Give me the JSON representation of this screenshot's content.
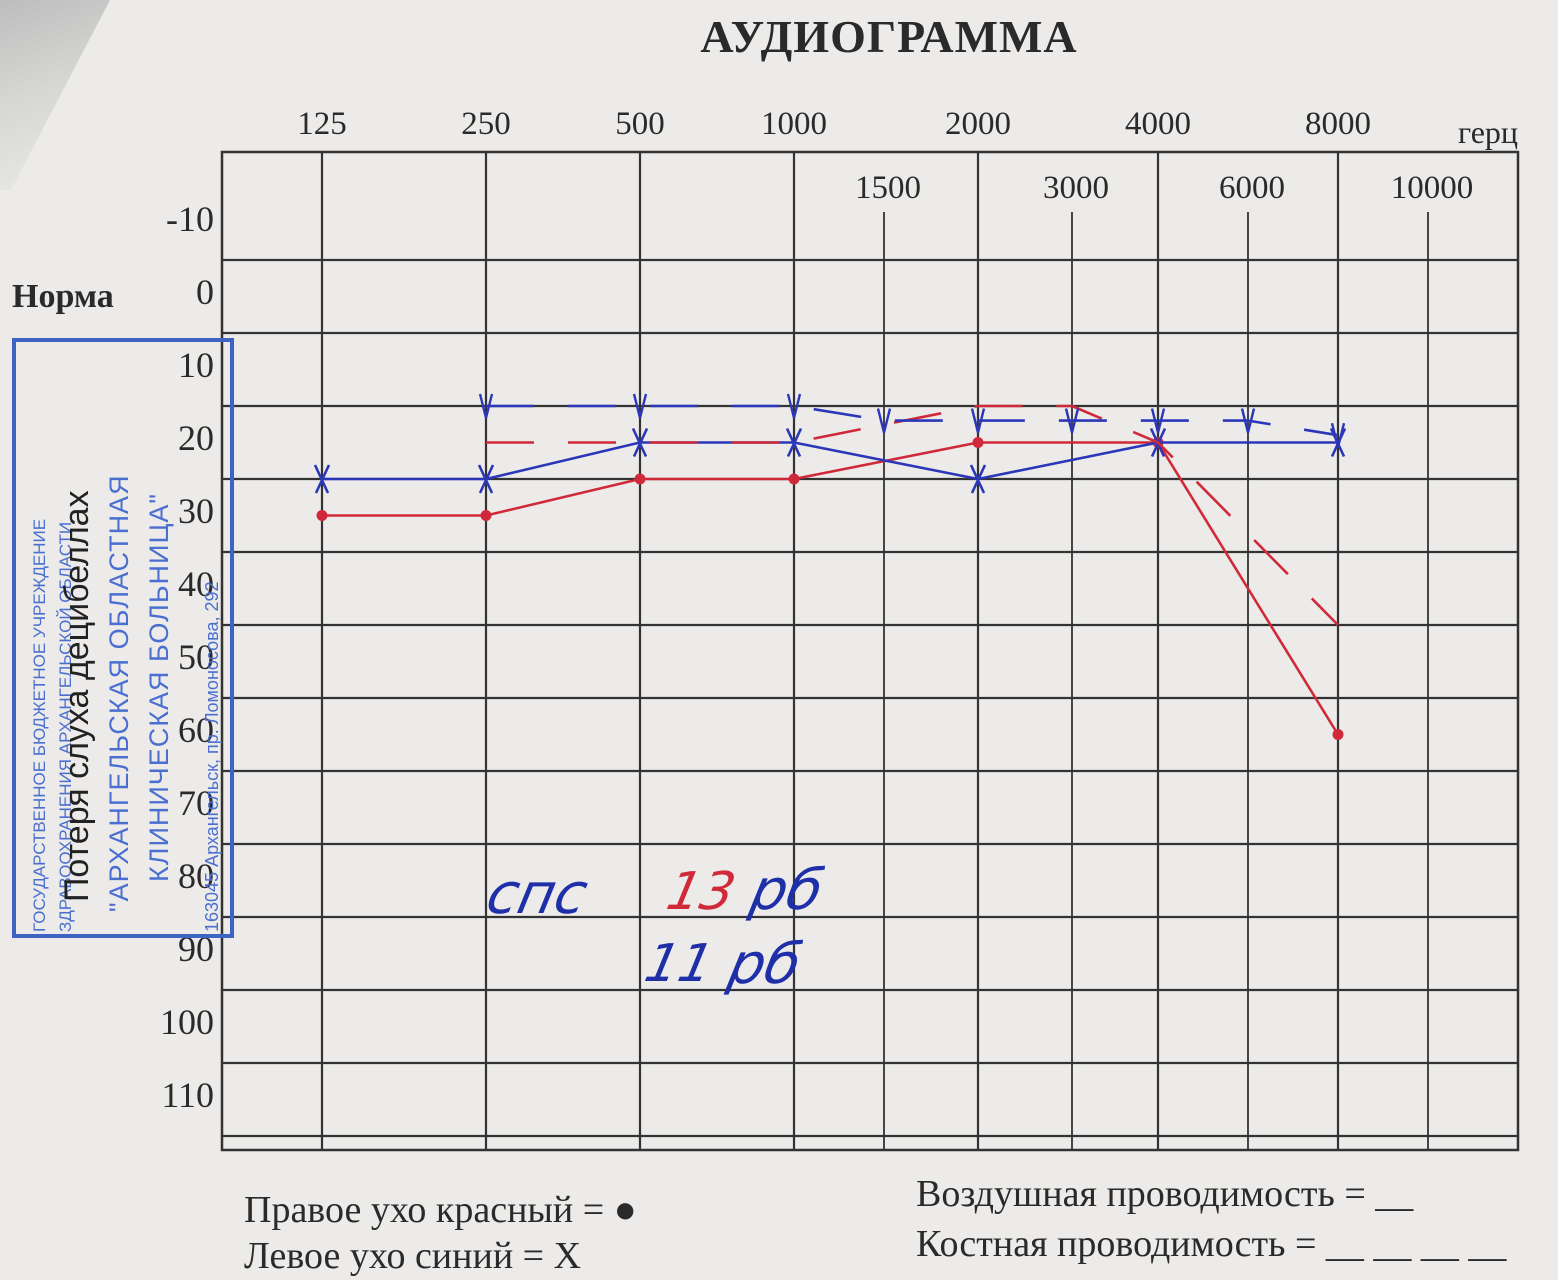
{
  "title": "АУДИОГРАММА",
  "norm_label": "Норма",
  "caption_vertical": "Потеря слуха децибеллах",
  "stamp": {
    "line1": "ГОСУДАРСТВЕННОЕ БЮДЖЕТНОЕ УЧРЕЖДЕНИЕ",
    "line2": "ЗДРАВООХРАНЕНИЯ АРХАНГЕЛЬСКОЙ ОБЛАСТИ",
    "line3": "\"АРХАНГЕЛЬСКАЯ ОБЛАСТНАЯ",
    "line4": "КЛИНИЧЕСКАЯ БОЛЬНИЦА\"",
    "line5": "163045 Архангельск, пр. Ломоносова, 292",
    "color": "#3d63c4"
  },
  "handwritten": {
    "note1": "спс",
    "note2": "13",
    "note3": "рб",
    "note4": "11",
    "note5": "рб",
    "blue": "#1f2fa8",
    "red": "#d02a3a"
  },
  "legend": {
    "right_ear": "Правое ухо красный = ●",
    "left_ear": "Левое ухо синий = X",
    "air": "Воздушная проводимость = __",
    "bone": "Костная проводимость = __ __ __ __"
  },
  "chart_data": {
    "type": "line",
    "title": "АУДИОГРАММА",
    "xlabel": "герц",
    "ylabel": "Потеря слуха децибеллах",
    "x_ticks_primary": [
      "125",
      "250",
      "500",
      "1000",
      "2000",
      "4000",
      "8000"
    ],
    "x_ticks_secondary": [
      "1500",
      "3000",
      "6000",
      "10000"
    ],
    "y_ticks": [
      "-10",
      "0",
      "10",
      "20",
      "30",
      "40",
      "50",
      "60",
      "70",
      "80",
      "90",
      "100",
      "110"
    ],
    "ylim": [
      -10,
      110
    ],
    "y_inverted": true,
    "grid": true,
    "series": [
      {
        "ear": "right",
        "conduction": "air",
        "color": "#d02a3a",
        "marker": "dot",
        "points": [
          [
            125,
            25
          ],
          [
            250,
            25
          ],
          [
            500,
            20
          ],
          [
            1000,
            20
          ],
          [
            2000,
            15
          ],
          [
            4000,
            15
          ],
          [
            8000,
            55
          ]
        ]
      },
      {
        "ear": "left",
        "conduction": "air",
        "color": "#2b37b8",
        "marker": "x",
        "points": [
          [
            125,
            20
          ],
          [
            250,
            20
          ],
          [
            500,
            15
          ],
          [
            1000,
            15
          ],
          [
            2000,
            20
          ],
          [
            4000,
            15
          ],
          [
            8000,
            15
          ]
        ]
      },
      {
        "ear": "right",
        "conduction": "bone",
        "color": "#d02a3a",
        "marker": "none",
        "dashed": true,
        "points": [
          [
            250,
            15
          ],
          [
            500,
            15
          ],
          [
            1000,
            15
          ],
          [
            2000,
            10
          ],
          [
            3000,
            10
          ],
          [
            4000,
            15
          ],
          [
            8000,
            40
          ]
        ]
      },
      {
        "ear": "left",
        "conduction": "bone",
        "color": "#2b37b8",
        "marker": "tick",
        "dashed": true,
        "points": [
          [
            250,
            10
          ],
          [
            500,
            10
          ],
          [
            1000,
            10
          ],
          [
            1500,
            12
          ],
          [
            2000,
            12
          ],
          [
            3000,
            12
          ],
          [
            4000,
            12
          ],
          [
            6000,
            12
          ],
          [
            8000,
            14
          ]
        ]
      }
    ]
  }
}
